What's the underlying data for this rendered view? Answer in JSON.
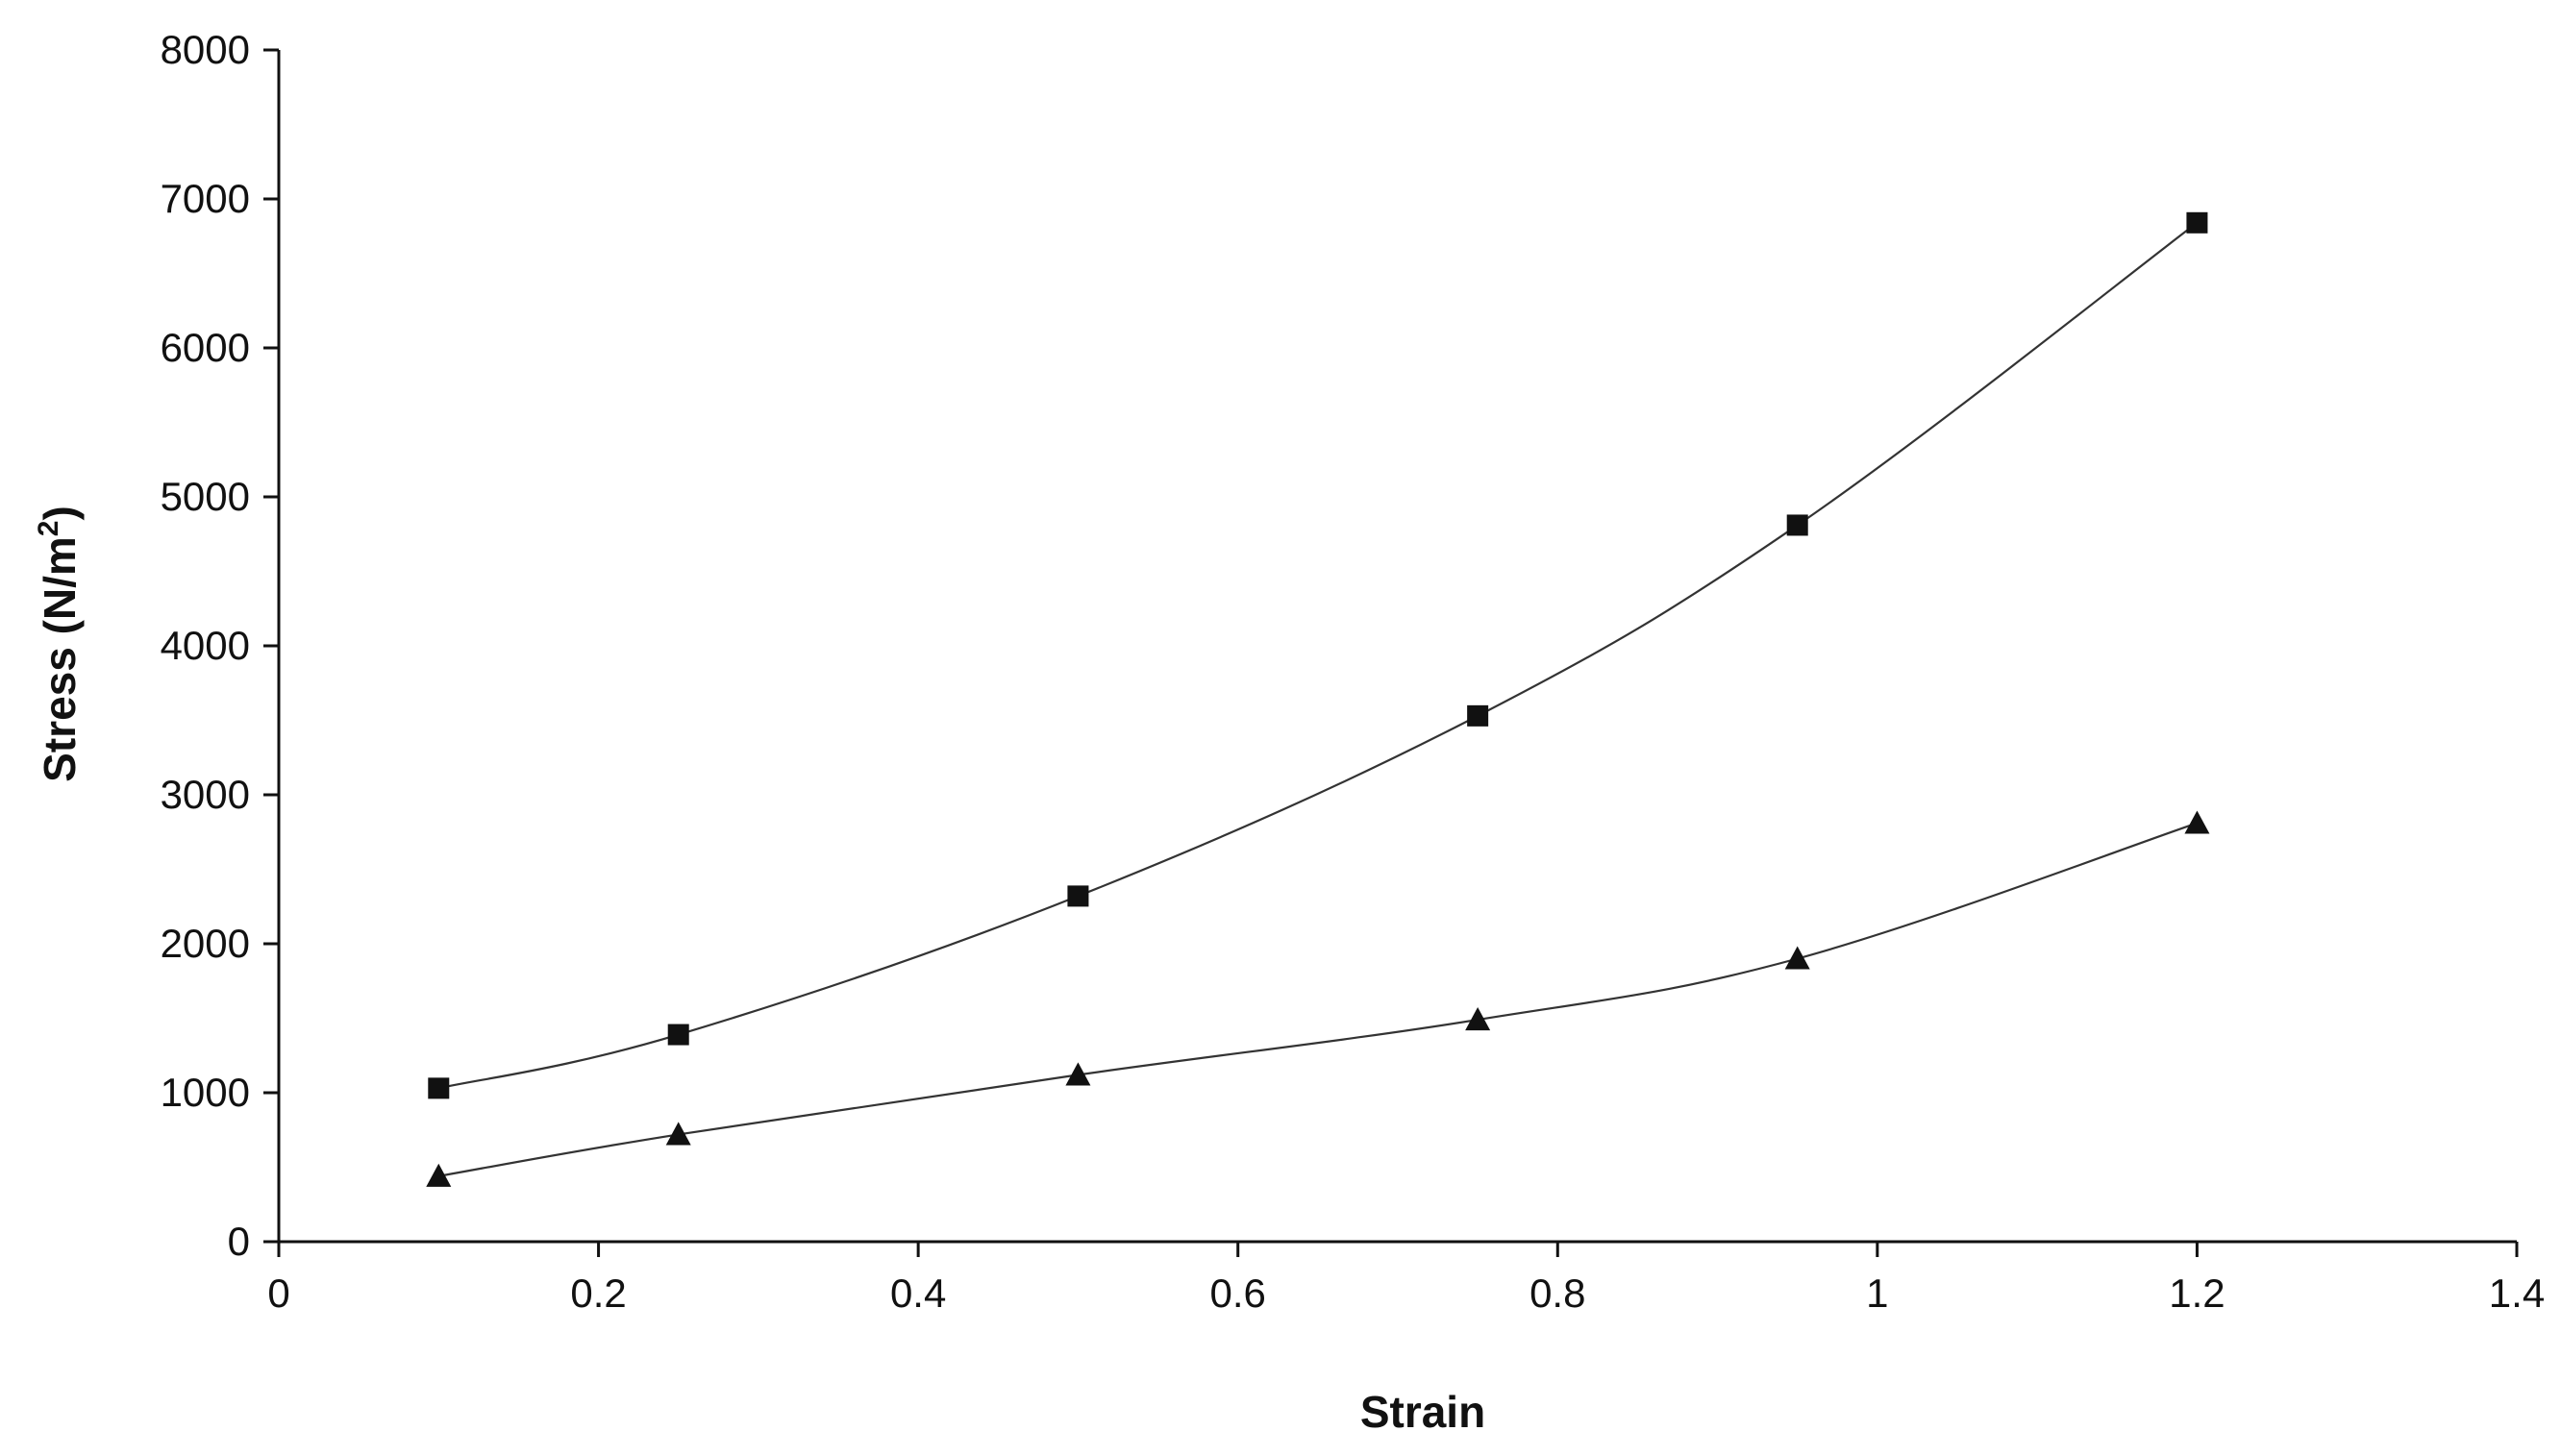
{
  "chart_data": {
    "type": "line",
    "title": "",
    "xlabel": "Strain",
    "ylabel_main": "Stress (N/m",
    "ylabel_sup": "2",
    "ylabel_close": ")",
    "xlim": [
      0,
      1.4
    ],
    "ylim": [
      0,
      8000
    ],
    "x_ticks": [
      "0",
      "0.2",
      "0.4",
      "0.6",
      "0.8",
      "1",
      "1.2",
      "1.4"
    ],
    "y_ticks": [
      "0",
      "1000",
      "2000",
      "3000",
      "4000",
      "5000",
      "6000",
      "7000",
      "8000"
    ],
    "grid": false,
    "legend": "none",
    "x": [
      0.1,
      0.25,
      0.5,
      0.75,
      0.95,
      1.2
    ],
    "series": [
      {
        "marker": "square",
        "color": "#111111",
        "values": [
          1030,
          1390,
          2320,
          3530,
          4810,
          6840
        ]
      },
      {
        "marker": "triangle",
        "color": "#111111",
        "values": [
          440,
          720,
          1120,
          1490,
          1900,
          2810
        ]
      }
    ]
  }
}
